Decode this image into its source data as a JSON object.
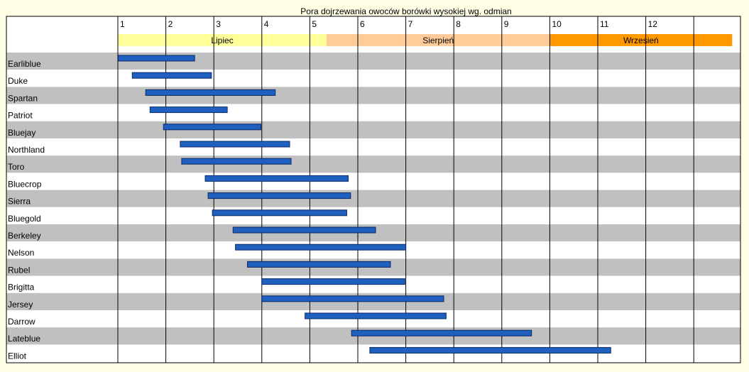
{
  "chart_data": {
    "type": "bar",
    "title": "Pora dojrzewania owoców borówki wysokiej wg. odmian",
    "x_ticks": [
      "1",
      "2",
      "3",
      "4",
      "5",
      "6",
      "7",
      "8",
      "9",
      "10",
      "11",
      "12"
    ],
    "xlim": [
      1,
      13.8
    ],
    "months": [
      {
        "label": "Lipiec",
        "start": 1,
        "end": 5.35,
        "color": "#ffff99"
      },
      {
        "label": "Sierpień",
        "start": 5.35,
        "end": 10,
        "color": "#ffcc99"
      },
      {
        "label": "Wrzesień",
        "start": 10,
        "end": 13.8,
        "color": "#ff9900"
      }
    ],
    "bar_color": "#1f5fbf",
    "row_colors": [
      "#c0c0c0",
      "#ffffff"
    ],
    "categories": [
      "Earliblue",
      "Duke",
      "Spartan",
      "Patriot",
      "Bluejay",
      "Northland",
      "Toro",
      "Bluecrop",
      "Sierra",
      "Bluegold",
      "Berkeley",
      "Nelson",
      "Rubel",
      "Brigitta",
      "Jersey",
      "Darrow",
      "Lateblue",
      "Elliot"
    ],
    "series": [
      {
        "values": [
          [
            1.0,
            2.6
          ],
          [
            1.3,
            2.95
          ],
          [
            1.58,
            4.28
          ],
          [
            1.67,
            3.28
          ],
          [
            1.95,
            3.98
          ],
          [
            2.3,
            4.58
          ],
          [
            2.33,
            4.61
          ],
          [
            2.82,
            5.8
          ],
          [
            2.88,
            5.85
          ],
          [
            2.97,
            5.77
          ],
          [
            3.4,
            6.37
          ],
          [
            3.45,
            7.0
          ],
          [
            3.7,
            6.68
          ],
          [
            4.0,
            6.98
          ],
          [
            4.0,
            7.79
          ],
          [
            4.9,
            7.84
          ],
          [
            5.87,
            9.62
          ],
          [
            6.25,
            11.27
          ]
        ]
      }
    ]
  }
}
